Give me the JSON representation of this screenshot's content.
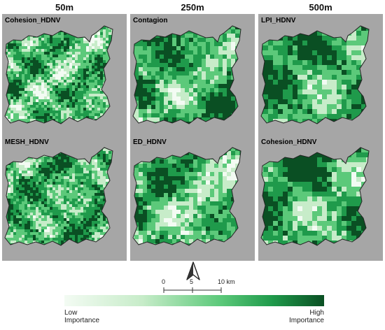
{
  "columns": [
    "50m",
    "250m",
    "500m"
  ],
  "panels": [
    {
      "label": "Cohesion_HDNV",
      "seed": 11,
      "cell": 4,
      "bias": 0.05,
      "scale": 1.0
    },
    {
      "label": "Contagion",
      "seed": 23,
      "cell": 6,
      "bias": 0.15,
      "scale": 1.6
    },
    {
      "label": "LPI_HDNV",
      "seed": 37,
      "cell": 7,
      "bias": 0.2,
      "scale": 2.0
    },
    {
      "label": "MESH_HDNV",
      "seed": 41,
      "cell": 4,
      "bias": 0.1,
      "scale": 1.0
    },
    {
      "label": "ED_HDNV",
      "seed": 53,
      "cell": 6,
      "bias": 0.05,
      "scale": 1.6
    },
    {
      "label": "Cohesion_HDNV",
      "seed": 67,
      "cell": 7,
      "bias": 0.15,
      "scale": 2.0
    }
  ],
  "scale_bar": {
    "ticks": [
      "0",
      "5",
      "10 km"
    ]
  },
  "legend": {
    "low_line1": "Low",
    "low_line2": "Importance",
    "high_line1": "High",
    "high_line2": "Importance"
  },
  "colors": {
    "background": "#a6a6a6",
    "ramp": [
      "#f3fbf3",
      "#c7ecc9",
      "#5cc97a",
      "#1f9a4b",
      "#0a4f23"
    ]
  }
}
